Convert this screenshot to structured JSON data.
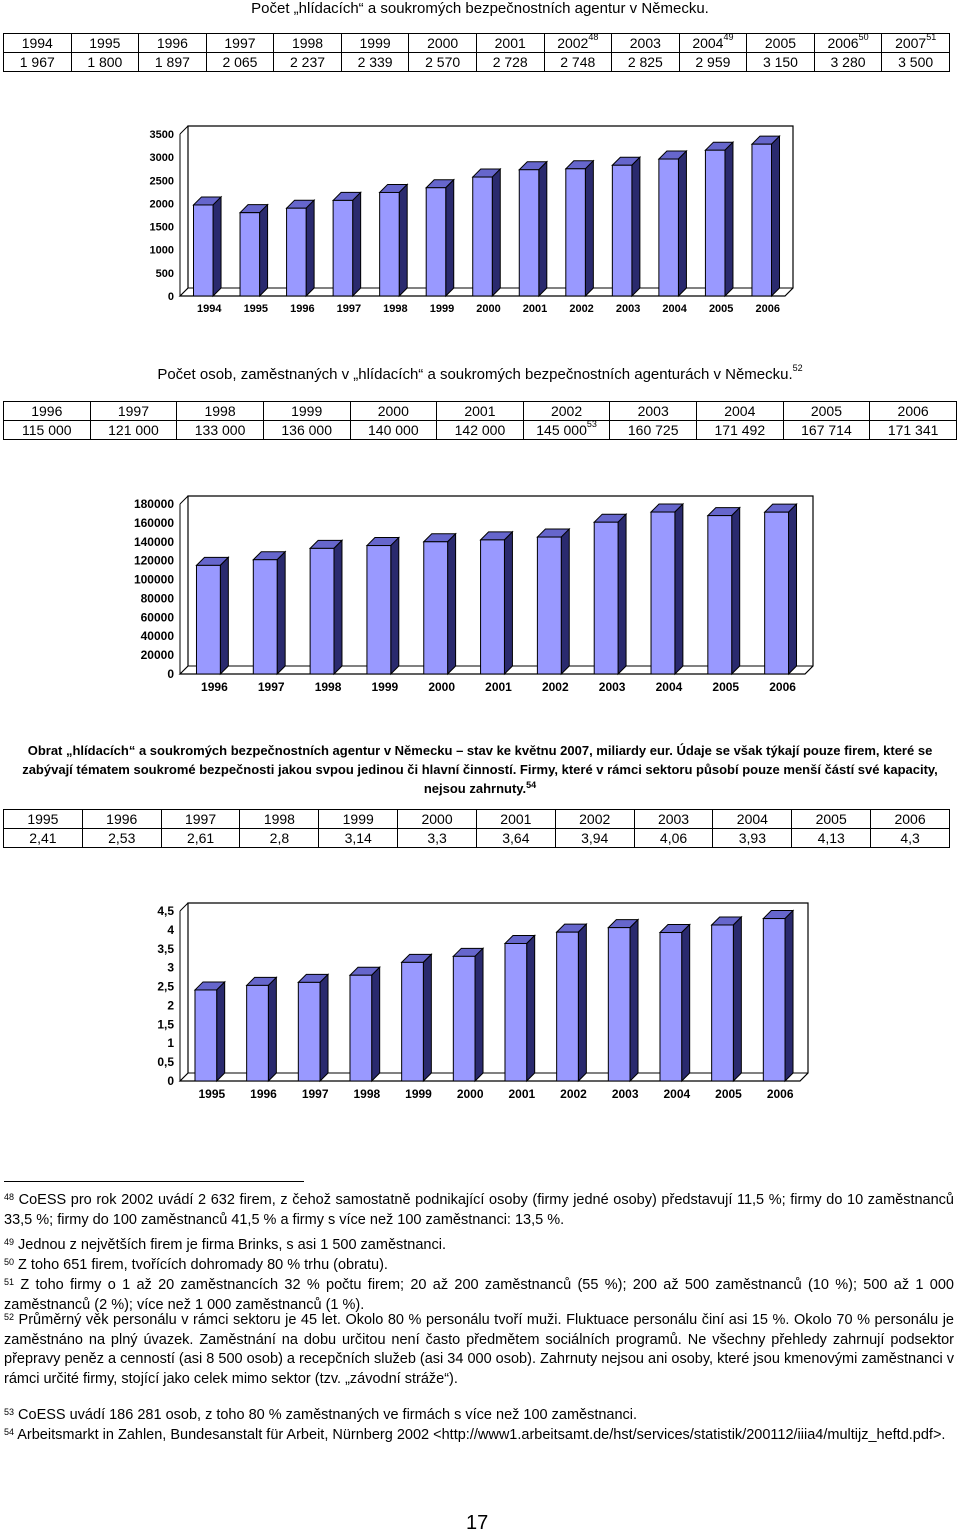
{
  "section1": {
    "title": "Počet „hlídacích“ a soukromých bezpečnostních agentur v Německu.",
    "years": [
      "1994",
      "1995",
      "1996",
      "1997",
      "1998",
      "1999",
      "2000",
      "2001",
      "2002",
      "2003",
      "2004",
      "2005",
      "2006",
      "2007"
    ],
    "year_sups": [
      "",
      "",
      "",
      "",
      "",
      "",
      "",
      "",
      "48",
      "",
      "49",
      "",
      "50",
      "51"
    ],
    "values": [
      "1 967",
      "1 800",
      "1 897",
      "2 065",
      "2 237",
      "2 339",
      "2 570",
      "2 728",
      "2 748",
      "2 825",
      "2 959",
      "3 150",
      "3 280",
      "3 500"
    ]
  },
  "section2": {
    "title": "Počet osob, zaměstnaných v „hlídacích“ a soukromých bezpečnostních agenturách v Německu.",
    "title_sup": "52",
    "years": [
      "1996",
      "1997",
      "1998",
      "1999",
      "2000",
      "2001",
      "2002",
      "2003",
      "2004",
      "2005",
      "2006"
    ],
    "values": [
      "115 000",
      "121 000",
      "133 000",
      "136 000",
      "140 000",
      "142 000",
      "145 000",
      "160 725",
      "171 492",
      "167 714",
      "171 341"
    ],
    "value_sups": [
      "",
      "",
      "",
      "",
      "",
      "",
      "53",
      "",
      "",
      "",
      ""
    ]
  },
  "section3": {
    "text": "Obrat „hlídacích“ a soukromých bezpečnostních agentur v Německu – stav ke květnu 2007, miliardy eur. Údaje se však týkají pouze firem, které se zabývají tématem soukromé bezpečnosti jakou svpou jedinou či hlavní činností. Firmy, které v rámci sektoru působí pouze menší částí své kapacity, nejsou zahrnuty.",
    "text_sup": "54",
    "years": [
      "1995",
      "1996",
      "1997",
      "1998",
      "1999",
      "2000",
      "2001",
      "2002",
      "2003",
      "2004",
      "2005",
      "2006"
    ],
    "values": [
      "2,41",
      "2,53",
      "2,61",
      "2,8",
      "3,14",
      "3,3",
      "3,64",
      "3,94",
      "4,06",
      "3,93",
      "4,13",
      "4,3"
    ]
  },
  "chart_data": [
    {
      "type": "bar",
      "categories": [
        "1994",
        "1995",
        "1996",
        "1997",
        "1998",
        "1999",
        "2000",
        "2001",
        "2002",
        "2003",
        "2004",
        "2005",
        "2006"
      ],
      "values": [
        1967,
        1800,
        1897,
        2065,
        2237,
        2339,
        2570,
        2728,
        2748,
        2825,
        2959,
        3150,
        3280
      ],
      "ylim": [
        0,
        3500
      ],
      "yticks": [
        "0",
        "500",
        "1000",
        "1500",
        "2000",
        "2500",
        "3000",
        "3500"
      ],
      "colors": {
        "bar": "#9999ff",
        "side": "#2a2a6e",
        "top": "#6666cc"
      }
    },
    {
      "type": "bar",
      "categories": [
        "1996",
        "1997",
        "1998",
        "1999",
        "2000",
        "2001",
        "2002",
        "2003",
        "2004",
        "2005",
        "2006"
      ],
      "values": [
        115000,
        121000,
        133000,
        136000,
        140000,
        142000,
        145000,
        160725,
        171492,
        167714,
        171341
      ],
      "ylim": [
        0,
        180000
      ],
      "yticks": [
        "0",
        "20000",
        "40000",
        "60000",
        "80000",
        "100000",
        "120000",
        "140000",
        "160000",
        "180000"
      ],
      "colors": {
        "bar": "#9999ff",
        "side": "#2a2a6e",
        "top": "#6666cc"
      }
    },
    {
      "type": "bar",
      "categories": [
        "1995",
        "1996",
        "1997",
        "1998",
        "1999",
        "2000",
        "2001",
        "2002",
        "2003",
        "2004",
        "2005",
        "2006"
      ],
      "values": [
        2.41,
        2.53,
        2.61,
        2.8,
        3.14,
        3.3,
        3.64,
        3.94,
        4.06,
        3.93,
        4.13,
        4.3
      ],
      "ylim": [
        0,
        4.5
      ],
      "yticks": [
        "0",
        "0,5",
        "1",
        "1,5",
        "2",
        "2,5",
        "3",
        "3,5",
        "4",
        "4,5"
      ],
      "colors": {
        "bar": "#9999ff",
        "side": "#2a2a6e",
        "top": "#6666cc"
      }
    }
  ],
  "footnotes": [
    {
      "num": "48",
      "text": " CoESS pro rok 2002 uvádí 2 632 firem, z čehož samostatně podnikající osoby (firmy jedné osoby) představují 11,5 %; firmy do 10 zaměstnanců 33,5 %; firmy do 100 zaměstnanců 41,5 % a firmy s více než 100 zaměstnanci: 13,5 %."
    },
    {
      "num": "49",
      "text": " Jednou z největších firem je firma Brinks, s asi 1 500 zaměstnanci."
    },
    {
      "num": "50",
      "text": " Z toho 651 firem, tvořících dohromady 80 % trhu (obratu)."
    },
    {
      "num": "51",
      "text": " Z toho firmy o 1 až 20 zaměstnancích 32 % počtu firem; 20 až 200 zaměstnanců (55 %); 200 až 500 zaměstnanců (10 %); 500 až 1 000 zaměstnanců (2 %); více než 1 000 zaměstnanců (1 %)."
    },
    {
      "num": "52",
      "text": " Průměrný věk personálu v rámci sektoru je 45 let. Okolo 80 % personálu tvoří muži. Fluktuace personálu činí asi 15 %. Okolo 70 % personálu je zaměstnáno na plný úvazek. Zaměstnání na dobu určitou není často předmětem sociálních programů. Ne všechny přehledy zahrnují podsektor přepravy peněz a cenností (asi 8 500 osob) a recepčních služeb (asi 34 000 osob). Zahrnuty nejsou ani osoby, které jsou kmenovými zaměstnanci v rámci určité firmy, stojící jako celek mimo sektor (tzv. „závodní stráže“)."
    },
    {
      "num": "53",
      "text": " CoESS uvádí 186 281 osob, z toho 80 % zaměstnaných ve firmách s více než 100 zaměstnanci."
    },
    {
      "num": "54",
      "text": " Arbeitsmarkt in Zahlen, Bundesanstalt für Arbeit, Nürnberg 2002 <http://www1.arbeitsamt.de/hst/services/statistik/200112/iiia4/multijz_heftd.pdf>."
    }
  ],
  "page_number": "17"
}
